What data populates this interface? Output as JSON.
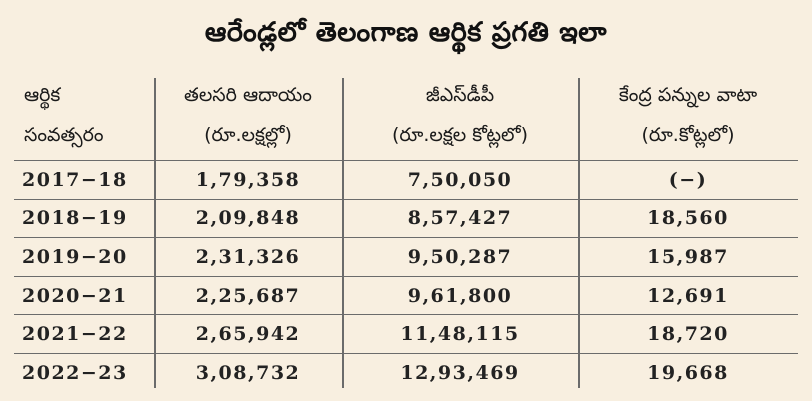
{
  "title": "ఆరేండ్లలో తెలంగాణ ఆర్థిక ప్రగతి ఇలా",
  "headers": [
    {
      "line1": "ఆర్థిక",
      "line2": "సంవత్సరం"
    },
    {
      "line1": "తలసరి ఆదాయం",
      "line2": "(రూ.లక్షల్లో)"
    },
    {
      "line1": "జీఎస్‌డీపీ",
      "line2": "(రూ.లక్షల కోట్లలో)"
    },
    {
      "line1": "కేంద్ర పన్నుల వాటా",
      "line2": "(రూ.కోట్లలో)"
    }
  ],
  "rows": [
    [
      "2017−18",
      "1,79,358",
      "7,50,050",
      "(−)"
    ],
    [
      "2018−19",
      "2,09,848",
      "8,57,427",
      "18,560"
    ],
    [
      "2019−20",
      "2,31,326",
      "9,50,287",
      "15,987"
    ],
    [
      "2020−21",
      "2,25,687",
      "9,61,800",
      "12,691"
    ],
    [
      "2021−22",
      "2,65,942",
      "11,48,115",
      "18,720"
    ],
    [
      "2022−23",
      "3,08,732",
      "12,93,469",
      "19,668"
    ]
  ]
}
